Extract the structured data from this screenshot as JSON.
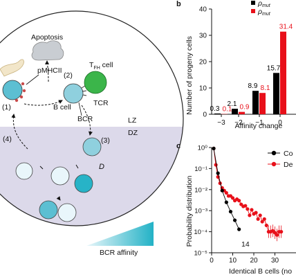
{
  "diagram": {
    "labels": {
      "apoptosis": "Apoptosis",
      "pmhcii": "pMHCII",
      "tfh_main": "T",
      "tfh_sub": "FH",
      "tfh_suffix": " cell",
      "step1": "(1)",
      "step2": "(2)",
      "step3": "(3)",
      "step4": "(4)",
      "tcr": "TCR",
      "bcell": "B cell",
      "bcr": "BCR",
      "lz": "LZ",
      "dz": "DZ",
      "d": "D",
      "bcr_affinity": "BCR affinity"
    },
    "colors": {
      "dz_zone": "#dcd9ea",
      "tfh_green": "#3bb54a",
      "cell_light": "#e9f6fb",
      "cell_mid": "#8fd0de",
      "cell_dark": "#27b3c7",
      "apoptosis_grey": "#c9cdd2"
    }
  },
  "panel_b": {
    "letter": "b",
    "legend": [
      {
        "symbol": "ρ",
        "sub": "mut",
        "color": "#000000"
      },
      {
        "symbol": "ρ",
        "sub": "mut",
        "color": "#e8101a"
      }
    ],
    "chart_data": {
      "type": "bar",
      "categories": [
        "-3",
        "-2",
        "-1",
        "0"
      ],
      "series": [
        {
          "values": [
            0.3,
            2.1,
            8.9,
            15.7
          ],
          "color": "#000000"
        },
        {
          "values": [
            0.1,
            0.9,
            8.1,
            31.4
          ],
          "color": "#e8101a"
        }
      ],
      "value_labels": [
        [
          "0.3",
          "2.1",
          "8.9",
          "15.7"
        ],
        [
          "0.1",
          "0.9",
          "8.1",
          "31.4"
        ]
      ],
      "ylabel": "Number of progeny cells",
      "xlabel": "Affinity change",
      "ylim": [
        0,
        40
      ],
      "yticks": [
        "0",
        "10",
        "20",
        "30",
        "40"
      ],
      "xticks": [
        "−3",
        "−2",
        "−1",
        "0"
      ]
    }
  },
  "panel_c": {
    "letter": "c",
    "legend": [
      {
        "label": "Co",
        "color": "#000000"
      },
      {
        "label": "De",
        "color": "#e8101a"
      }
    ],
    "annotation": "14",
    "chart_data": {
      "type": "line",
      "ylabel": "Probability distribution",
      "xlabel": "Identical B cells (no",
      "ylim": [
        1e-05,
        1
      ],
      "xlim": [
        0,
        40
      ],
      "yscale": "log",
      "yticks": [
        "10⁰",
        "10⁻¹",
        "10⁻²",
        "10⁻³",
        "10⁻⁴",
        "10⁻⁵"
      ],
      "xticks": [
        "0",
        "10",
        "20",
        "30"
      ],
      "series": [
        {
          "color": "#000000",
          "x": [
            1,
            3,
            5,
            7,
            9,
            11,
            13
          ],
          "y": [
            0.9,
            0.06,
            0.009,
            0.0025,
            0.0009,
            0.00035,
            0.00013
          ]
        },
        {
          "color": "#e8101a",
          "x": [
            1,
            2,
            3,
            4,
            5,
            6,
            7,
            8,
            9,
            10,
            11,
            12,
            13,
            14,
            15,
            16,
            17,
            18,
            19,
            20,
            21,
            22,
            23,
            24,
            25,
            26,
            27,
            28,
            29,
            30,
            31,
            32,
            33
          ],
          "y": [
            0.9,
            0.15,
            0.04,
            0.02,
            0.012,
            0.009,
            0.007,
            0.005,
            0.005,
            0.004,
            0.003,
            0.0035,
            0.003,
            0.002,
            0.0016,
            0.0017,
            0.0012,
            0.0006,
            0.0011,
            0.0007,
            0.0008,
            0.0004,
            0.0006,
            0.0003,
            0.0004,
            0.0002,
            0.0001,
            0.0001,
            0.00011,
            9e-05,
            7e-05,
            0.0001,
            0.0001
          ]
        }
      ]
    }
  }
}
